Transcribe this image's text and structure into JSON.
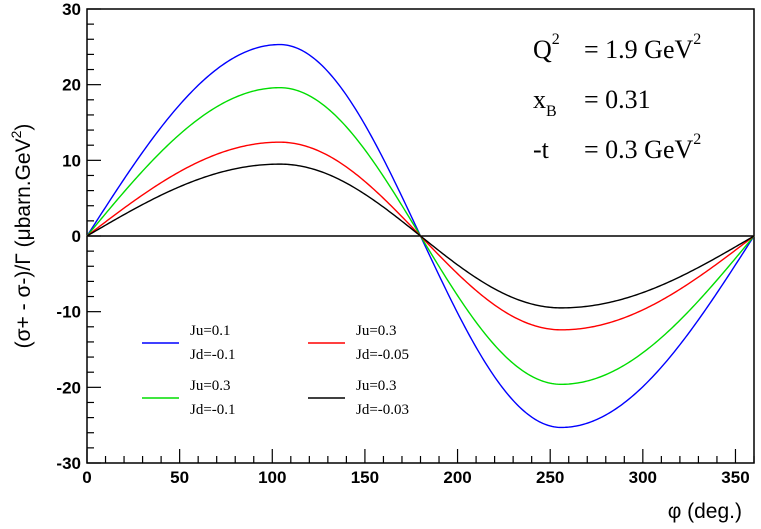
{
  "chart_data": {
    "type": "line",
    "xlabel": "φ (deg.)",
    "ylabel": "(σ+ - σ-)/Γ   (μbarn.GeV",
    "ylabel_sup": "2",
    "ylabel_close": ")",
    "xlim": [
      0,
      360
    ],
    "ylim": [
      -30,
      30
    ],
    "xticks": [
      "0",
      "50",
      "100",
      "150",
      "200",
      "250",
      "300",
      "350"
    ],
    "yticks": [
      "-30",
      "-20",
      "-10",
      "0",
      "10",
      "20",
      "30"
    ],
    "grid": false,
    "legend_placement": "bottom-left",
    "annotations": {
      "q2": {
        "label": "Q",
        "sup": "2",
        "value": "= 1.9 GeV",
        "value_sup": "2"
      },
      "xb": {
        "label": "x",
        "sub": "B",
        "value": "= 0.31"
      },
      "t": {
        "label": "-t",
        "value": "= 0.3 GeV",
        "value_sup": "2"
      }
    },
    "series": [
      {
        "legend_line1": "Ju=0.1",
        "legend_line2": "Jd=-0.1",
        "color": "#0000ff",
        "amplitude": 25.3,
        "peak_x": 104,
        "trough_x": 256,
        "trough": -25.3
      },
      {
        "legend_line1": "Ju=0.3",
        "legend_line2": "Jd=-0.1",
        "color": "#00dd00",
        "amplitude": 19.6,
        "peak_x": 104,
        "trough_x": 256,
        "trough": -19.6
      },
      {
        "legend_line1": "Ju=0.3",
        "legend_line2": "Jd=-0.05",
        "color": "#ff0000",
        "amplitude": 12.4,
        "peak_x": 104,
        "trough_x": 256,
        "trough": -12.4
      },
      {
        "legend_line1": "Ju=0.3",
        "legend_line2": "Jd=-0.03",
        "color": "#000000",
        "amplitude": 9.5,
        "peak_x": 104,
        "trough_x": 256,
        "trough": -9.5
      }
    ]
  }
}
